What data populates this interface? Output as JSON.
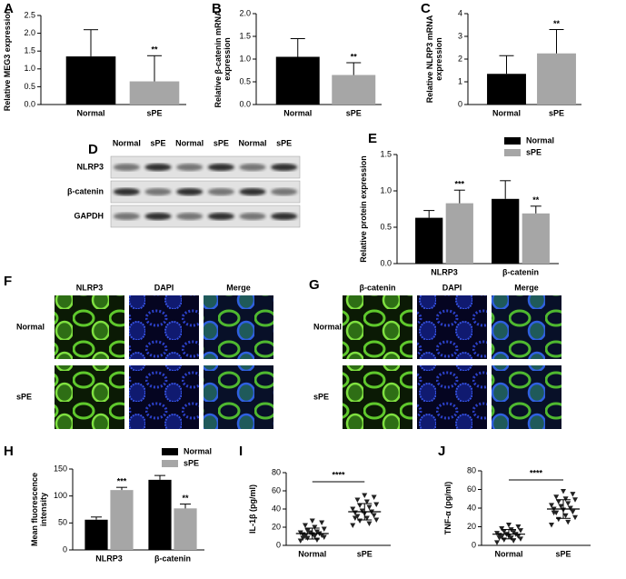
{
  "chart_data": [
    {
      "type": "bar",
      "label": "A",
      "ylabel": "Relative MEG3 expression",
      "categories": [
        "Normal",
        "sPE"
      ],
      "values": [
        1.35,
        0.65
      ],
      "errors": [
        0.75,
        0.72
      ],
      "colors": [
        "#000000",
        "#a6a6a6"
      ],
      "annotations": [
        null,
        "**"
      ],
      "ylim": [
        0,
        2.5
      ],
      "yticks": [
        {
          "value": 0,
          "label": "0.0"
        },
        {
          "value": 0.5,
          "label": "0.5"
        },
        {
          "value": 1,
          "label": "1.0"
        },
        {
          "value": 1.5,
          "label": "1.5"
        },
        {
          "value": 2,
          "label": "2.0"
        },
        {
          "value": 2.5,
          "label": "2.5"
        }
      ]
    },
    {
      "type": "bar",
      "label": "B",
      "ylabel": "Relative β-catenin mRNA expression",
      "categories": [
        "Normal",
        "sPE"
      ],
      "values": [
        1.05,
        0.65
      ],
      "errors": [
        0.4,
        0.27
      ],
      "colors": [
        "#000000",
        "#a6a6a6"
      ],
      "annotations": [
        null,
        "**"
      ],
      "ylim": [
        0,
        2
      ],
      "yticks": [
        {
          "value": 0,
          "label": "0.0"
        },
        {
          "value": 0.5,
          "label": "0.5"
        },
        {
          "value": 1,
          "label": "1.0"
        },
        {
          "value": 1.5,
          "label": "1.5"
        },
        {
          "value": 2,
          "label": "2.0"
        }
      ]
    },
    {
      "type": "bar",
      "label": "C",
      "ylabel": "Relative NLRP3 mRNA expression",
      "categories": [
        "Normal",
        "sPE"
      ],
      "values": [
        1.35,
        2.25
      ],
      "errors": [
        0.8,
        1.05
      ],
      "colors": [
        "#000000",
        "#a6a6a6"
      ],
      "annotations": [
        null,
        "**"
      ],
      "ylim": [
        0,
        4
      ],
      "yticks": [
        0,
        1,
        2,
        3,
        4
      ]
    },
    {
      "type": "grouped_bar",
      "label": "E",
      "ylabel": "Relative protein expression",
      "categories": [
        "NLRP3",
        "β-catenin"
      ],
      "series": [
        {
          "name": "Normal",
          "color": "#000000",
          "values": [
            0.63,
            0.89
          ],
          "errors": [
            0.1,
            0.25
          ],
          "annotations": [
            null,
            null
          ]
        },
        {
          "name": "sPE",
          "color": "#a6a6a6",
          "values": [
            0.83,
            0.69
          ],
          "errors": [
            0.18,
            0.1
          ],
          "annotations": [
            "***",
            "**"
          ]
        }
      ],
      "ylim": [
        0,
        1.5
      ],
      "yticks": [
        {
          "value": 0,
          "label": "0.0"
        },
        {
          "value": 0.5,
          "label": "0.5"
        },
        {
          "value": 1,
          "label": "1.0"
        },
        {
          "value": 1.5,
          "label": "1.5"
        }
      ]
    },
    {
      "type": "grouped_bar",
      "label": "H",
      "ylabel": "Mean fluorescence intensity",
      "categories": [
        "NLRP3",
        "β-catenin"
      ],
      "series": [
        {
          "name": "Normal",
          "color": "#000000",
          "values": [
            56,
            130
          ],
          "errors": [
            5,
            8
          ],
          "annotations": [
            null,
            null
          ]
        },
        {
          "name": "sPE",
          "color": "#a6a6a6",
          "values": [
            111,
            77
          ],
          "errors": [
            5,
            8
          ],
          "annotations": [
            "***",
            "**"
          ]
        }
      ],
      "ylim": [
        0,
        150
      ],
      "yticks": [
        0,
        50,
        100,
        150
      ]
    },
    {
      "type": "dot",
      "label": "I",
      "ylabel": "IL-1β (pg/ml)",
      "categories": [
        "Normal",
        "sPE"
      ],
      "points": [
        [
          5,
          6,
          8,
          9,
          10,
          10,
          11,
          12,
          12,
          13,
          14,
          14,
          15,
          16,
          18,
          20,
          22,
          25,
          27,
          8
        ],
        [
          22,
          24,
          27,
          28,
          30,
          32,
          33,
          35,
          36,
          37,
          38,
          40,
          42,
          44,
          45,
          48,
          50,
          53,
          55,
          30
        ]
      ],
      "means": [
        13,
        37
      ],
      "sds": [
        6,
        9
      ],
      "significance": "****",
      "ylim": [
        0,
        80
      ],
      "yticks": [
        0,
        20,
        40,
        60,
        80
      ]
    },
    {
      "type": "dot",
      "label": "J",
      "ylabel": "TNF-α (pg/ml)",
      "categories": [
        "Normal",
        "sPE"
      ],
      "points": [
        [
          3,
          5,
          6,
          7,
          8,
          9,
          10,
          10,
          11,
          12,
          12,
          13,
          14,
          15,
          16,
          17,
          18,
          20,
          22,
          8
        ],
        [
          22,
          25,
          28,
          30,
          32,
          35,
          36,
          38,
          39,
          40,
          42,
          43,
          45,
          47,
          49,
          50,
          52,
          55,
          58,
          35
        ]
      ],
      "means": [
        12,
        39
      ],
      "sds": [
        5,
        10
      ],
      "significance": "****",
      "ylim": [
        0,
        80
      ],
      "yticks": [
        0,
        20,
        40,
        60,
        80
      ]
    }
  ],
  "blot": {
    "label": "D",
    "columns": [
      "Normal",
      "sPE",
      "Normal",
      "sPE",
      "Normal",
      "sPE"
    ],
    "rows": [
      "NLRP3",
      "β-catenin",
      "GAPDH"
    ]
  },
  "micrographs": [
    {
      "label": "F",
      "columns": [
        "NLRP3",
        "DAPI",
        "Merge"
      ],
      "rows": [
        "Normal",
        "sPE"
      ]
    },
    {
      "label": "G",
      "columns": [
        "β-catenin",
        "DAPI",
        "Merge"
      ],
      "rows": [
        "Normal",
        "sPE"
      ]
    }
  ]
}
